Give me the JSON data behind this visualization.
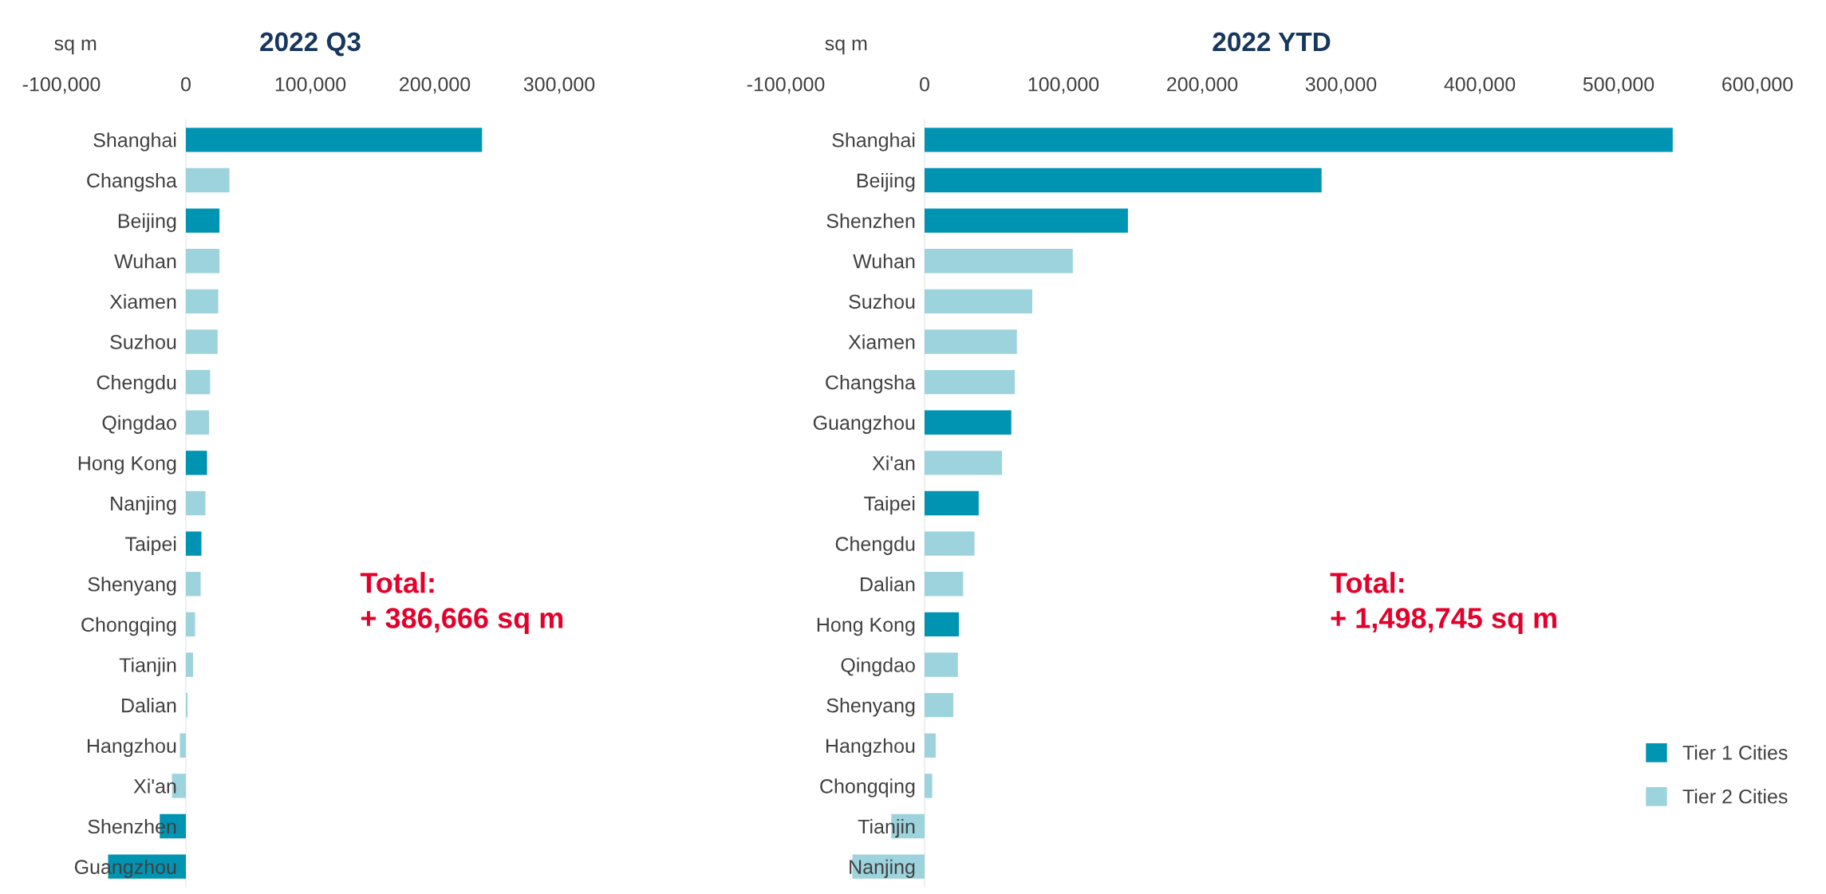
{
  "chart_data": [
    {
      "type": "bar",
      "orientation": "horizontal",
      "title": "2022 Q3",
      "xlabel": "sq m",
      "categories": [
        "Shanghai",
        "Changsha",
        "Beijing",
        "Wuhan",
        "Xiamen",
        "Suzhou",
        "Chengdu",
        "Qingdao",
        "Hong Kong",
        "Nanjing",
        "Taipei",
        "Shenyang",
        "Chongqing",
        "Tianjin",
        "Dalian",
        "Hangzhou",
        "Xi'an",
        "Shenzhen",
        "Guangzhou"
      ],
      "series": [
        {
          "color": "#0094b3",
          "values": [
            238000,
            null,
            27000,
            null,
            null,
            null,
            null,
            null,
            17000,
            null,
            12500,
            null,
            null,
            null,
            null,
            null,
            null,
            -21000,
            -62500
          ]
        },
        {
          "color": "#9dd3dd",
          "values": [
            null,
            35000,
            null,
            27000,
            26000,
            25500,
            19500,
            18600,
            null,
            15700,
            null,
            11900,
            7400,
            5800,
            1300,
            -4800,
            -11200,
            null,
            null
          ]
        }
      ],
      "xlim": [
        -100000,
        300000
      ],
      "xticks": [
        {
          "value": -100000,
          "label": "-100,000"
        },
        0,
        {
          "value": 100000,
          "label": "100,000"
        },
        {
          "value": 200000,
          "label": "200,000"
        },
        {
          "value": 300000,
          "label": "300,000"
        }
      ],
      "annotations": [
        "Total:\n+ 386,666 sq m"
      ]
    },
    {
      "type": "bar",
      "orientation": "horizontal",
      "title": "2022 YTD",
      "xlabel": "sq m",
      "categories": [
        "Shanghai",
        "Beijing",
        "Shenzhen",
        "Wuhan",
        "Suzhou",
        "Xiamen",
        "Changsha",
        "Guangzhou",
        "Xi'an",
        "Taipei",
        "Chengdu",
        "Dalian",
        "Hong Kong",
        "Qingdao",
        "Shenyang",
        "Hangzhou",
        "Chongqing",
        "Tianjin",
        "Nanjing"
      ],
      "series": [
        {
          "name": "Tier 1 Cities",
          "color": "#0094b3",
          "values": [
            539000,
            286000,
            146500,
            null,
            null,
            null,
            null,
            62500,
            null,
            39000,
            null,
            null,
            24700,
            null,
            null,
            null,
            null,
            null,
            null
          ]
        },
        {
          "name": "Tier 2 Cities",
          "color": "#9dd3dd",
          "values": [
            null,
            null,
            null,
            106800,
            77600,
            66500,
            65000,
            null,
            55800,
            null,
            36000,
            27800,
            null,
            24000,
            20700,
            8000,
            5500,
            -24000,
            -52000
          ]
        }
      ],
      "xlim": [
        -100000,
        600000
      ],
      "xticks": [
        {
          "value": -100000,
          "label": "-100,000"
        },
        0,
        {
          "value": 100000,
          "label": "100,000"
        },
        {
          "value": 200000,
          "label": "200,000"
        },
        {
          "value": 300000,
          "label": "300,000"
        },
        {
          "value": 400000,
          "label": "400,000"
        },
        {
          "value": 500000,
          "label": "500,000"
        },
        {
          "value": 600000,
          "label": "600,000"
        }
      ],
      "legend": "bottom right",
      "annotations": [
        "Total:\n+ 1,498,745 sq m"
      ]
    }
  ]
}
